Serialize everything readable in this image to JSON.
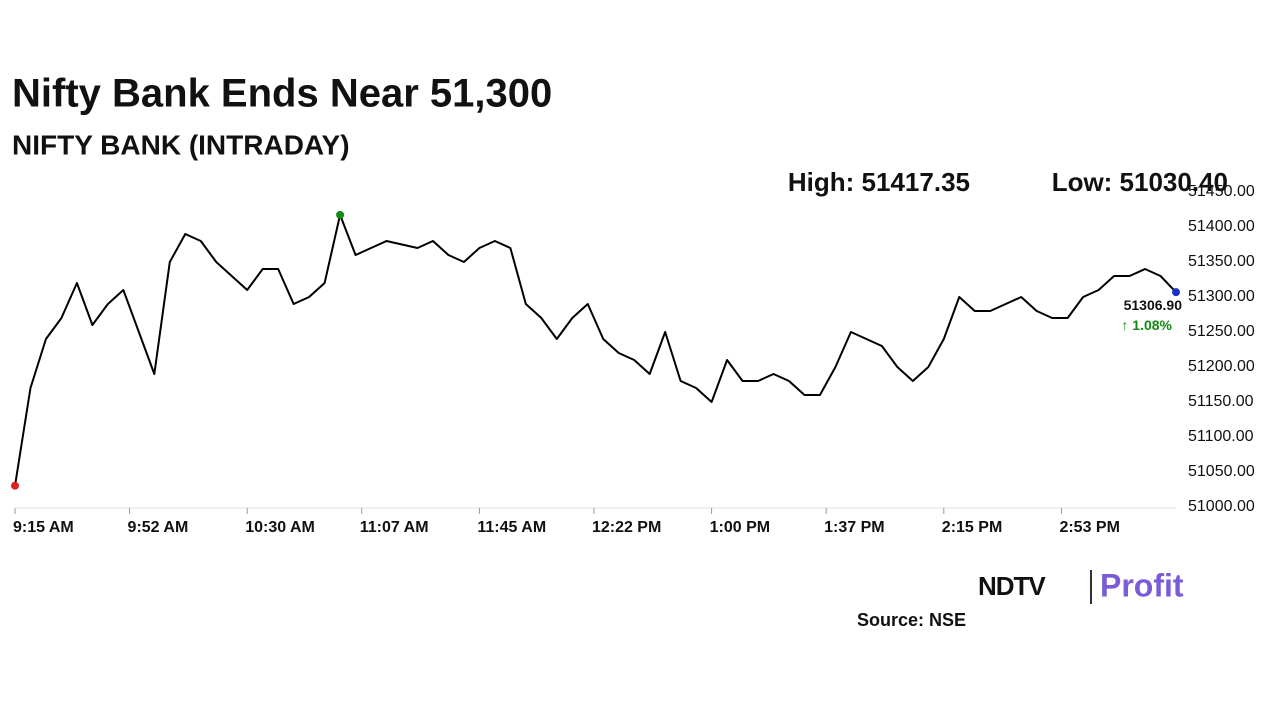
{
  "chart_data": {
    "type": "line",
    "title": "Nifty Bank Ends Near 51,300",
    "subtitle": "NIFTY BANK (INTRADAY)",
    "high_label": "High: 51417.35",
    "low_label": "Low: 51030.40",
    "last_label": "51306.90",
    "change_label": "↑ 1.08%",
    "source": "Source: NSE",
    "brand": [
      "NDTV",
      "Profit"
    ],
    "color": "#000000",
    "low_color": "#e02020",
    "high_color": "#138a13",
    "last_color": "#1a2fbf",
    "change_color": "#138a13",
    "x": [
      "9:15 AM",
      "9:20 AM",
      "9:25 AM",
      "9:30 AM",
      "9:35 AM",
      "9:40 AM",
      "9:45 AM",
      "9:50 AM",
      "9:55 AM",
      "10:00 AM",
      "10:05 AM",
      "10:10 AM",
      "10:15 AM",
      "10:20 AM",
      "10:25 AM",
      "10:30 AM",
      "10:35 AM",
      "10:40 AM",
      "10:45 AM",
      "10:50 AM",
      "10:55 AM",
      "11:00 AM",
      "11:05 AM",
      "11:10 AM",
      "11:15 AM",
      "11:20 AM",
      "11:25 AM",
      "11:30 AM",
      "11:35 AM",
      "11:40 AM",
      "11:45 AM",
      "11:50 AM",
      "11:55 AM",
      "12:00 PM",
      "12:05 PM",
      "12:10 PM",
      "12:15 PM",
      "12:20 PM",
      "12:25 PM",
      "12:30 PM",
      "12:35 PM",
      "12:40 PM",
      "12:45 PM",
      "12:50 PM",
      "12:55 PM",
      "1:00 PM",
      "1:05 PM",
      "1:10 PM",
      "1:15 PM",
      "1:20 PM",
      "1:25 PM",
      "1:30 PM",
      "1:35 PM",
      "1:40 PM",
      "1:45 PM",
      "1:50 PM",
      "1:55 PM",
      "2:00 PM",
      "2:05 PM",
      "2:10 PM",
      "2:15 PM",
      "2:20 PM",
      "2:25 PM",
      "2:30 PM",
      "2:35 PM",
      "2:40 PM",
      "2:45 PM",
      "2:50 PM",
      "2:55 PM",
      "3:00 PM",
      "3:05 PM",
      "3:10 PM",
      "3:15 PM",
      "3:20 PM",
      "3:25 PM",
      "3:30 PM"
    ],
    "values": [
      51030.4,
      51170,
      51240,
      51270,
      51320,
      51260,
      51290,
      51310,
      51250,
      51190,
      51350,
      51390,
      51380,
      51350,
      51330,
      51310,
      51340,
      51340,
      51290,
      51300,
      51320,
      51417.35,
      51360,
      51370,
      51380,
      51375,
      51370,
      51380,
      51360,
      51350,
      51370,
      51380,
      51370,
      51290,
      51270,
      51240,
      51270,
      51290,
      51240,
      51220,
      51210,
      51190,
      51250,
      51180,
      51170,
      51150,
      51210,
      51180,
      51180,
      51190,
      51180,
      51160,
      51160,
      51200,
      51250,
      51240,
      51230,
      51200,
      51180,
      51200,
      51240,
      51300,
      51280,
      51280,
      51290,
      51300,
      51280,
      51270,
      51270,
      51300,
      51310,
      51330,
      51330,
      51340,
      51330,
      51306.9
    ],
    "xlim": [
      "9:15 AM",
      "3:30 PM"
    ],
    "xticks": [
      "9:15 AM",
      "9:52 AM",
      "10:30 AM",
      "11:07 AM",
      "11:45 AM",
      "12:22 PM",
      "1:00 PM",
      "1:37 PM",
      "2:15 PM",
      "2:53 PM"
    ],
    "ylim": [
      51000,
      51450
    ],
    "yticks": [
      {
        "value": 51000,
        "label": "51000.00"
      },
      {
        "value": 51050,
        "label": "51050.00"
      },
      {
        "value": 51100,
        "label": "51100.00"
      },
      {
        "value": 51150,
        "label": "51150.00"
      },
      {
        "value": 51200,
        "label": "51200.00"
      },
      {
        "value": 51250,
        "label": "51250.00"
      },
      {
        "value": 51300,
        "label": "51300.00"
      },
      {
        "value": 51350,
        "label": "51350.00"
      },
      {
        "value": 51400,
        "label": "51400.00"
      },
      {
        "value": 51450,
        "label": "51450.00"
      }
    ]
  }
}
